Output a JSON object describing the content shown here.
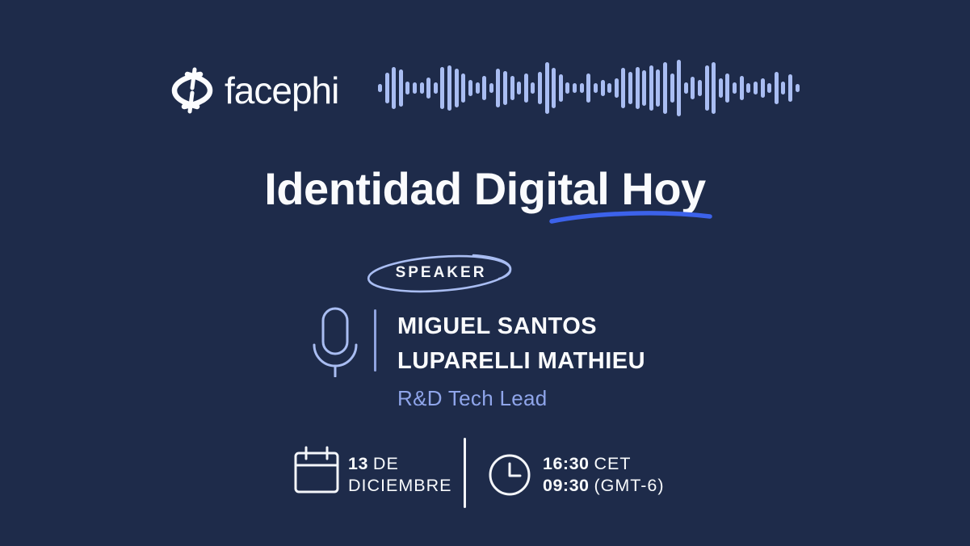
{
  "brand": {
    "name": "facephi"
  },
  "header": {
    "waveform_bar_heights": [
      10,
      38,
      52,
      46,
      16,
      14,
      14,
      26,
      14,
      52,
      56,
      48,
      36,
      20,
      14,
      30,
      12,
      48,
      42,
      30,
      16,
      36,
      14,
      40,
      64,
      50,
      34,
      14,
      12,
      12,
      36,
      12,
      20,
      12,
      24,
      50,
      40,
      52,
      44,
      56,
      46,
      64,
      36,
      70,
      14,
      28,
      20,
      56,
      64,
      24,
      36,
      14,
      30,
      12,
      16,
      24,
      12,
      40,
      16,
      34,
      10
    ]
  },
  "title": {
    "text": "Identidad Digital Hoy"
  },
  "speaker": {
    "badge_label": "SPEAKER",
    "name_line1": "MIGUEL SANTOS",
    "name_line2": "LUPARELLI MATHIEU",
    "role": "R&D Tech Lead"
  },
  "event": {
    "date_day": "13",
    "date_connector": "DE",
    "date_month": "DICIEMBRE",
    "time_primary": "16:30",
    "time_primary_zone": "CET",
    "time_secondary": "09:30",
    "time_secondary_zone": "(GMT-6)"
  },
  "colors": {
    "background": "#1e2b4a",
    "text_white": "#fafbfd",
    "periwinkle": "#a9bdf2",
    "accent_blue": "#3c62ea",
    "role_text": "#8fa5ea",
    "divider_blue": "#8fa3df"
  }
}
